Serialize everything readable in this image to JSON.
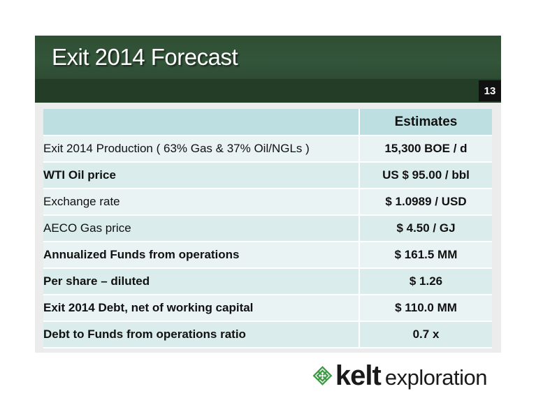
{
  "slide": {
    "title": "Exit 2014 Forecast",
    "page_number": "13"
  },
  "table": {
    "header": "Estimates",
    "rows": [
      {
        "label": "Exit 2014 Production ( 63% Gas & 37% Oil/NGLs )",
        "value": "15,300 BOE / d"
      },
      {
        "label": "WTI Oil price",
        "value": "US $ 95.00 / bbl"
      },
      {
        "label": "Exchange rate",
        "value": "$ 1.0989 / USD"
      },
      {
        "label": "AECO Gas price",
        "value": "$ 4.50 / GJ"
      },
      {
        "label": "Annualized Funds from operations",
        "value": "$ 161.5 MM"
      },
      {
        "label": "Per share – diluted",
        "value": "$ 1.26"
      },
      {
        "label": "Exit 2014 Debt, net of working capital",
        "value": "$ 110.0 MM"
      },
      {
        "label": "Debt to Funds from operations ratio",
        "value": "0.7 x"
      }
    ]
  },
  "logo": {
    "icon": "celtic-knot-icon",
    "brand": "kelt",
    "tagline": "exploration",
    "color": "#3d9a45"
  }
}
